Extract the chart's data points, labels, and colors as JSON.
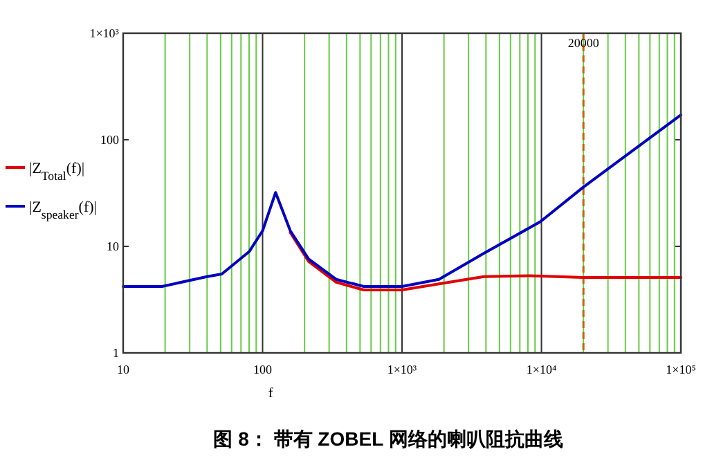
{
  "chart_data": {
    "type": "line",
    "xlabel": "f",
    "log": "xy",
    "xlim": [
      10,
      100000
    ],
    "ylim": [
      1,
      1000
    ],
    "xticks": [
      10,
      {
        "value": 20,
        "label": null
      },
      {
        "value": 30,
        "label": null
      },
      {
        "value": 40,
        "label": null
      },
      {
        "value": 50,
        "label": null
      },
      {
        "value": 60,
        "label": null
      },
      {
        "value": 70,
        "label": null
      },
      {
        "value": 80,
        "label": null
      },
      {
        "value": 90,
        "label": null
      },
      100,
      {
        "value": 200,
        "label": null
      },
      {
        "value": 300,
        "label": null
      },
      {
        "value": 400,
        "label": null
      },
      {
        "value": 500,
        "label": null
      },
      {
        "value": 600,
        "label": null
      },
      {
        "value": 700,
        "label": null
      },
      {
        "value": 800,
        "label": null
      },
      {
        "value": 900,
        "label": null
      },
      {
        "value": 1000,
        "label": "1×10³"
      },
      {
        "value": 2000,
        "label": null
      },
      {
        "value": 3000,
        "label": null
      },
      {
        "value": 4000,
        "label": null
      },
      {
        "value": 5000,
        "label": null
      },
      {
        "value": 6000,
        "label": null
      },
      {
        "value": 7000,
        "label": null
      },
      {
        "value": 8000,
        "label": null
      },
      {
        "value": 9000,
        "label": null
      },
      {
        "value": 10000,
        "label": "1×10⁴"
      },
      {
        "value": 20000,
        "label": null
      },
      {
        "value": 30000,
        "label": null
      },
      {
        "value": 40000,
        "label": null
      },
      {
        "value": 50000,
        "label": null
      },
      {
        "value": 60000,
        "label": null
      },
      {
        "value": 70000,
        "label": null
      },
      {
        "value": 80000,
        "label": null
      },
      {
        "value": 90000,
        "label": null
      },
      {
        "value": 100000,
        "label": "1×10⁵"
      }
    ],
    "yticks": [
      1,
      10,
      100,
      {
        "value": 1000,
        "label": "1×10³"
      }
    ],
    "grid": "x",
    "legend": "left",
    "line_style": "solid",
    "marker": "none",
    "series": [
      {
        "name": "|Z$_{Total}$(f)|",
        "color": "#e00000",
        "x": [
          158,
          214,
          337,
          532,
          1000,
          1840,
          3870,
          8300,
          20000,
          100000
        ],
        "values": [
          13.5,
          7.2,
          4.6,
          3.9,
          3.9,
          4.45,
          5.2,
          5.3,
          5.1,
          5.1
        ]
      },
      {
        "name": "|Z$_{speaker}$(f)|",
        "color": "#0000c0",
        "x": [
          10,
          19,
          40,
          51,
          80,
          100,
          124,
          158,
          214,
          337,
          532,
          1000,
          1840,
          3870,
          9800,
          20000,
          100000
        ],
        "values": [
          4.2,
          4.2,
          5.2,
          5.5,
          8.9,
          14,
          32,
          14,
          7.6,
          4.9,
          4.2,
          4.2,
          4.9,
          8.6,
          17,
          36,
          171
        ]
      }
    ],
    "ref_lines": [
      {
        "axis": "x",
        "value": 20000,
        "label": "20000",
        "color": "#c86400",
        "line_style": "dashed"
      }
    ],
    "annotations": [
      "图 8： 带有 ZOBEL 网络的喇叭阻抗曲线"
    ]
  }
}
